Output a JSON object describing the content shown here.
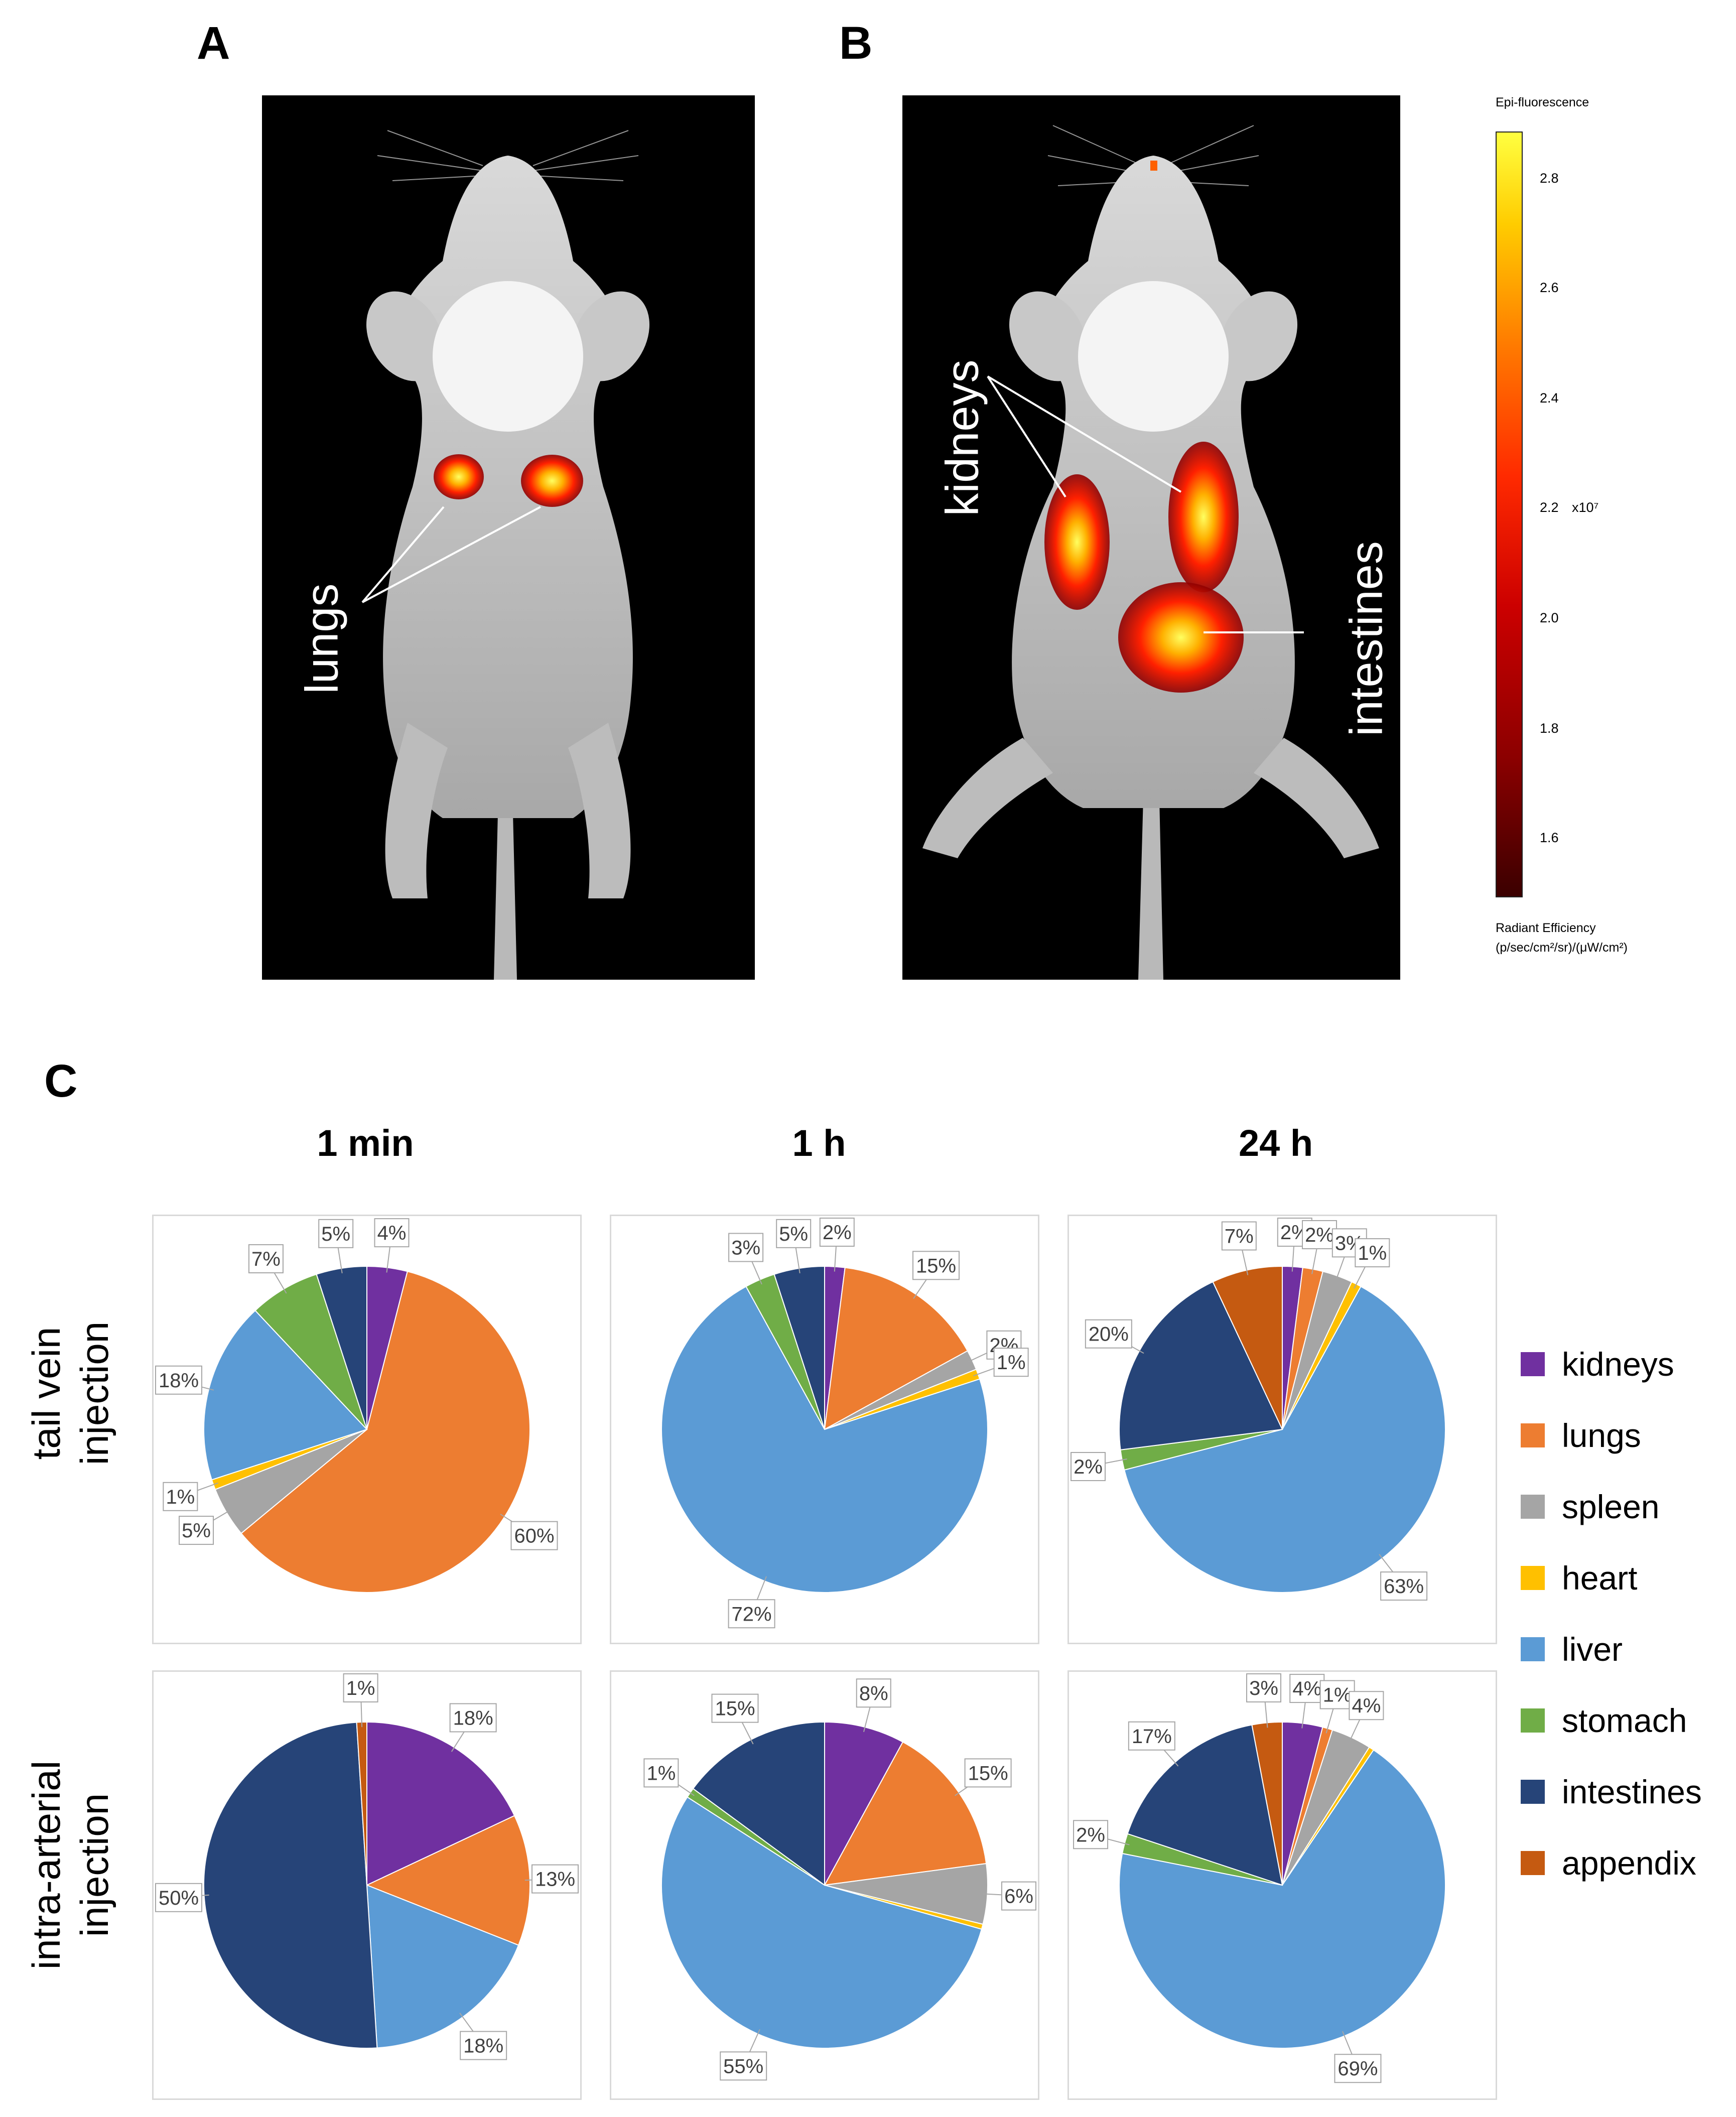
{
  "panels": {
    "a": "A",
    "b": "B",
    "c": "C"
  },
  "photo_labels": {
    "lungs": "lungs",
    "kidneys": "kidneys",
    "intestines": "intestines"
  },
  "scale": {
    "title": "Epi-fluorescence",
    "ticks": [
      "2.8",
      "2.6",
      "2.4",
      "2.2",
      "2.0",
      "1.8",
      "1.6"
    ],
    "multiplier": "x10⁷",
    "unit_line1": "Radiant Efficiency",
    "unit_line2": "(p/sec/cm²/sr)/(μW/cm²)",
    "colors": [
      "#3b0000",
      "#8b0000",
      "#cc0000",
      "#ff2a00",
      "#ff7a00",
      "#ffcc00",
      "#ffff40"
    ]
  },
  "time_labels": [
    "1 min",
    "1 h",
    "24 h"
  ],
  "row_labels": {
    "tail_vein_line1": "tail vein",
    "tail_vein_line2": "injection",
    "intra_arterial_line1": "intra-arterial",
    "intra_arterial_line2": "injection"
  },
  "legend": [
    {
      "name": "kidneys",
      "color": "#7030a0"
    },
    {
      "name": "lungs",
      "color": "#ed7d31"
    },
    {
      "name": "spleen",
      "color": "#a5a5a5"
    },
    {
      "name": "heart",
      "color": "#ffc000"
    },
    {
      "name": "liver",
      "color": "#5b9bd5"
    },
    {
      "name": "stomach",
      "color": "#70ad47"
    },
    {
      "name": "intestines",
      "color": "#264478"
    },
    {
      "name": "appendix",
      "color": "#c55a11"
    }
  ],
  "chart_data": [
    {
      "type": "pie",
      "row": "tail vein injection",
      "time": "1 min",
      "slices": [
        {
          "name": "kidneys",
          "value": 4,
          "label": "4%"
        },
        {
          "name": "lungs",
          "value": 60,
          "label": "60%"
        },
        {
          "name": "spleen",
          "value": 5,
          "label": "5%"
        },
        {
          "name": "heart",
          "value": 1,
          "label": "1%"
        },
        {
          "name": "liver",
          "value": 18,
          "label": "18%"
        },
        {
          "name": "stomach",
          "value": 7,
          "label": "7%"
        },
        {
          "name": "intestines",
          "value": 5,
          "label": "5%"
        }
      ]
    },
    {
      "type": "pie",
      "row": "tail vein injection",
      "time": "1 h",
      "slices": [
        {
          "name": "kidneys",
          "value": 2,
          "label": "2%"
        },
        {
          "name": "lungs",
          "value": 15,
          "label": "15%"
        },
        {
          "name": "spleen",
          "value": 2,
          "label": "2%"
        },
        {
          "name": "heart",
          "value": 1,
          "label": "1%"
        },
        {
          "name": "liver",
          "value": 72,
          "label": "72%"
        },
        {
          "name": "stomach",
          "value": 3,
          "label": "3%"
        },
        {
          "name": "intestines",
          "value": 5,
          "label": "5%"
        }
      ]
    },
    {
      "type": "pie",
      "row": "tail vein injection",
      "time": "24 h",
      "slices": [
        {
          "name": "kidneys",
          "value": 2,
          "label": "2%"
        },
        {
          "name": "lungs",
          "value": 2,
          "label": "2%"
        },
        {
          "name": "spleen",
          "value": 3,
          "label": "3%"
        },
        {
          "name": "heart",
          "value": 1,
          "label": "1%"
        },
        {
          "name": "liver",
          "value": 63,
          "label": "63%"
        },
        {
          "name": "stomach",
          "value": 2,
          "label": "2%"
        },
        {
          "name": "intestines",
          "value": 20,
          "label": "20%"
        },
        {
          "name": "appendix",
          "value": 7,
          "label": "7%"
        }
      ]
    },
    {
      "type": "pie",
      "row": "intra-arterial injection",
      "time": "1 min",
      "slices": [
        {
          "name": "kidneys",
          "value": 18,
          "label": "18%"
        },
        {
          "name": "lungs",
          "value": 13,
          "label": "13%"
        },
        {
          "name": "liver",
          "value": 18,
          "label": "18%"
        },
        {
          "name": "intestines",
          "value": 50,
          "label": "50%"
        },
        {
          "name": "appendix",
          "value": 1,
          "label": "1%"
        }
      ]
    },
    {
      "type": "pie",
      "row": "intra-arterial injection",
      "time": "1 h",
      "slices": [
        {
          "name": "kidneys",
          "value": 8,
          "label": "8%"
        },
        {
          "name": "lungs",
          "value": 15,
          "label": "15%"
        },
        {
          "name": "spleen",
          "value": 6,
          "label": "6%"
        },
        {
          "name": "heart",
          "value": 0.5,
          "label": ""
        },
        {
          "name": "liver",
          "value": 55,
          "label": "55%"
        },
        {
          "name": "stomach",
          "value": 1,
          "label": "1%"
        },
        {
          "name": "intestines",
          "value": 15,
          "label": "15%"
        }
      ]
    },
    {
      "type": "pie",
      "row": "intra-arterial injection",
      "time": "24 h",
      "slices": [
        {
          "name": "kidneys",
          "value": 4,
          "label": "4%"
        },
        {
          "name": "lungs",
          "value": 1,
          "label": "1%"
        },
        {
          "name": "spleen",
          "value": 4,
          "label": "4%"
        },
        {
          "name": "heart",
          "value": 0.5,
          "label": ""
        },
        {
          "name": "liver",
          "value": 69,
          "label": "69%"
        },
        {
          "name": "stomach",
          "value": 2,
          "label": "2%"
        },
        {
          "name": "intestines",
          "value": 17,
          "label": "17%"
        },
        {
          "name": "appendix",
          "value": 3,
          "label": "3%"
        }
      ]
    }
  ]
}
